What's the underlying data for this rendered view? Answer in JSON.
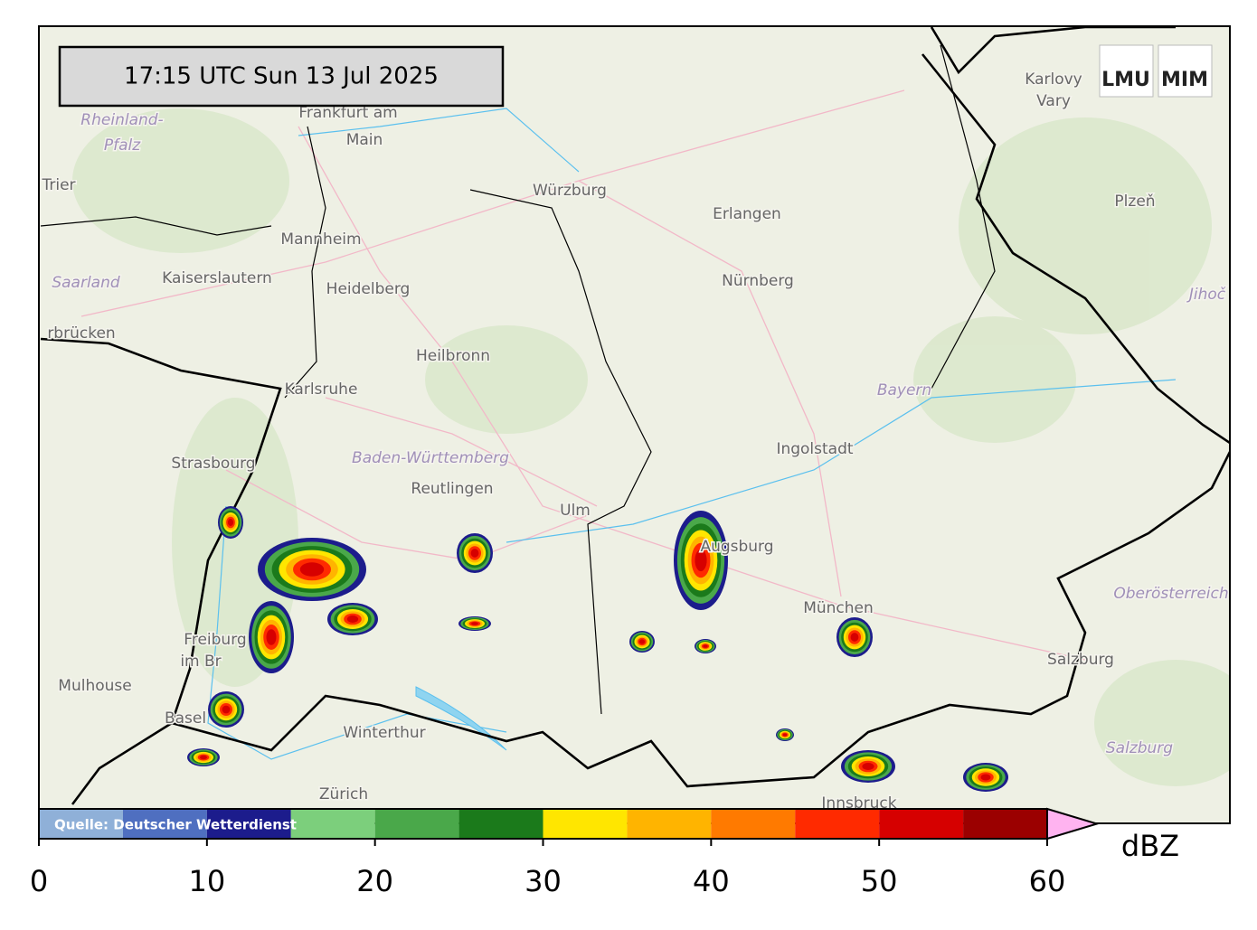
{
  "timestamp": "17:15 UTC  Sun 13 Jul 2025",
  "logos": [
    "LMU",
    "MIM"
  ],
  "source": "Quelle: Deutscher Wetterdienst",
  "places": [
    {
      "label": "Frankfurt am"
    },
    {
      "label": "Main"
    },
    {
      "label": "Rheinland-"
    },
    {
      "label": "Pfalz"
    },
    {
      "label": "Trier"
    },
    {
      "label": "Würzburg"
    },
    {
      "label": "Erlangen"
    },
    {
      "label": "Nürnberg"
    },
    {
      "label": "Karlovy"
    },
    {
      "label": "Vary"
    },
    {
      "label": "Plzeň"
    },
    {
      "label": "Mannheim"
    },
    {
      "label": "Kaiserslautern"
    },
    {
      "label": "Saarland"
    },
    {
      "label": "Heidelberg"
    },
    {
      "label": "rbrücken"
    },
    {
      "label": "Heilbronn"
    },
    {
      "label": "Karlsruhe"
    },
    {
      "label": "Bayern"
    },
    {
      "label": "Ingolstadt"
    },
    {
      "label": "Strasbourg"
    },
    {
      "label": "Baden-Württemberg"
    },
    {
      "label": "Reutlingen"
    },
    {
      "label": "Ulm"
    },
    {
      "label": "Augsburg"
    },
    {
      "label": "München"
    },
    {
      "label": "Oberösterreich"
    },
    {
      "label": "Freiburg"
    },
    {
      "label": "im Br"
    },
    {
      "label": "Mulhouse"
    },
    {
      "label": "Basel"
    },
    {
      "label": "Winterthur"
    },
    {
      "label": "Zürich"
    },
    {
      "label": "Salzburg"
    },
    {
      "label": "Salzburg"
    },
    {
      "label": "Jihoč"
    },
    {
      "label": "Innsbruck"
    }
  ],
  "colorbar": {
    "unit": "dBZ",
    "bounds": [
      0,
      5,
      10,
      15,
      20,
      25,
      30,
      35,
      40,
      45,
      50,
      55,
      60
    ],
    "colors": [
      "#8fb0d8",
      "#4f6fc0",
      "#1c1c8c",
      "#7ccf7c",
      "#4aa84a",
      "#1b7a1b",
      "#ffe600",
      "#ffb400",
      "#ff7a00",
      "#ff2a00",
      "#d60000",
      "#9b0000"
    ],
    "extend_color": "#ffb3f0",
    "ticks": [
      0,
      10,
      20,
      30,
      40,
      50,
      60
    ]
  }
}
